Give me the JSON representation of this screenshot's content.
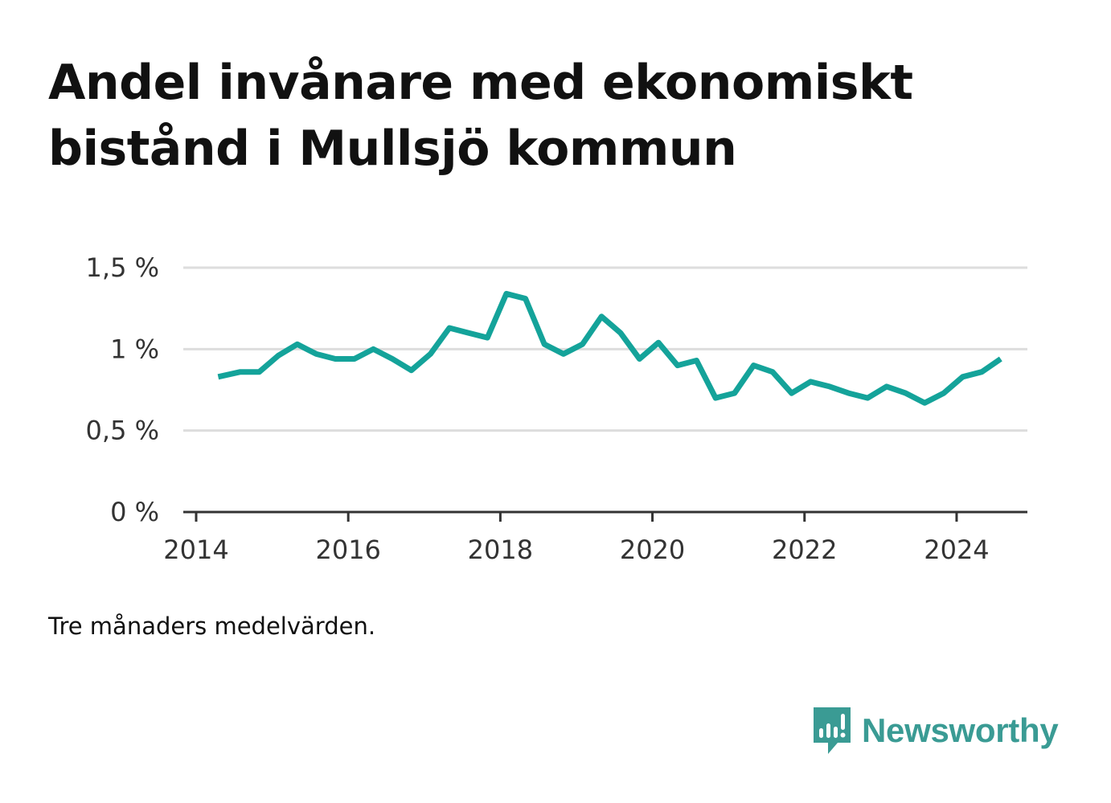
{
  "chart_data": {
    "type": "line",
    "title": "Andel invånare med ekonomiskt bistånd i Mullsjö kommun",
    "note": "Tre månaders medelvärden.",
    "xlabel": "",
    "ylabel": "",
    "ylim": [
      0,
      1.5
    ],
    "xlim": [
      2014.0,
      2025.1
    ],
    "y_ticks": [
      {
        "value": 0,
        "label": "0 %"
      },
      {
        "value": 0.5,
        "label": "0,5 %"
      },
      {
        "value": 1.0,
        "label": "1 %"
      },
      {
        "value": 1.5,
        "label": "1,5 %"
      }
    ],
    "x_ticks": [
      {
        "value": 2014,
        "label": "2014"
      },
      {
        "value": 2016,
        "label": "2016"
      },
      {
        "value": 2018,
        "label": "2018"
      },
      {
        "value": 2020,
        "label": "2020"
      },
      {
        "value": 2022,
        "label": "2022"
      },
      {
        "value": 2024,
        "label": "2024"
      }
    ],
    "grid": true,
    "series": [
      {
        "name": "Andel invånare med ekonomiskt bistånd",
        "color": "#14a39a",
        "x": [
          2014.29,
          2014.58,
          2014.83,
          2015.08,
          2015.33,
          2015.58,
          2015.83,
          2016.08,
          2016.33,
          2016.58,
          2016.83,
          2017.08,
          2017.33,
          2017.58,
          2017.83,
          2018.08,
          2018.33,
          2018.58,
          2018.83,
          2019.08,
          2019.33,
          2019.58,
          2019.83,
          2020.08,
          2020.33,
          2020.58,
          2020.83,
          2021.08,
          2021.33,
          2021.58,
          2021.83,
          2022.08,
          2022.33,
          2022.58,
          2022.83,
          2023.08,
          2023.33,
          2023.58,
          2023.83,
          2024.08,
          2024.33,
          2024.58
        ],
        "values": [
          0.83,
          0.86,
          0.86,
          0.96,
          1.03,
          0.97,
          0.94,
          0.94,
          1.0,
          0.94,
          0.87,
          0.97,
          1.13,
          1.1,
          1.07,
          1.34,
          1.31,
          1.03,
          0.97,
          1.03,
          1.2,
          1.1,
          0.94,
          1.04,
          0.9,
          0.93,
          0.7,
          0.73,
          0.9,
          0.86,
          0.73,
          0.8,
          0.77,
          0.73,
          0.7,
          0.77,
          0.73,
          0.67,
          0.73,
          0.83,
          0.86,
          0.94
        ]
      }
    ]
  },
  "brand": {
    "name": "Newsworthy",
    "icon": "newsworthy-logo-icon",
    "color": "#3a9b94"
  }
}
